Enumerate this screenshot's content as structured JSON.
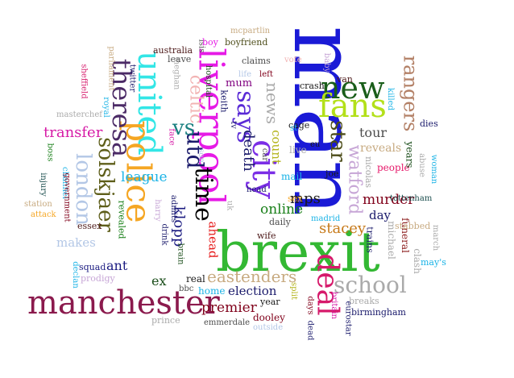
{
  "cloud": {
    "words": [
      {
        "text": "man",
        "color": "#1a1ad6",
        "rot": 90
      },
      {
        "text": "brexit",
        "color": "#33b833",
        "rot": 0
      },
      {
        "text": "liverpool",
        "color": "#e61ae6",
        "rot": 90
      },
      {
        "text": "united",
        "color": "#33e6e6",
        "rot": 90
      },
      {
        "text": "police",
        "color": "#f5a623",
        "rot": 90
      },
      {
        "text": "manchester",
        "color": "#8b1a4d",
        "rot": 0
      },
      {
        "text": "city",
        "color": "#7b2ee6",
        "rot": 90
      },
      {
        "text": "theresa",
        "color": "#4b2a66",
        "rot": 90
      },
      {
        "text": "new",
        "color": "#1a5e1a",
        "rot": 0
      },
      {
        "text": "fans",
        "color": "#b3e01a",
        "rot": 0
      },
      {
        "text": "says",
        "color": "#5a2ad6",
        "rot": 90
      },
      {
        "text": "deal",
        "color": "#d61a6b",
        "rot": 90
      },
      {
        "text": "rangers",
        "color": "#b38066",
        "rot": 90
      },
      {
        "text": "time",
        "color": "#000000",
        "rot": 90
      },
      {
        "text": "solskjaer",
        "color": "#5e5e1a",
        "rot": 90
      },
      {
        "text": "utd",
        "color": "#1a1a6b",
        "rot": 90
      },
      {
        "text": "star",
        "color": "#4d4d1a",
        "rot": 90
      },
      {
        "text": "london",
        "color": "#b3c7e6",
        "rot": 90
      },
      {
        "text": "school",
        "color": "#aaaaaa",
        "rot": 0
      },
      {
        "text": "watford",
        "color": "#c7a6d6",
        "rot": 90
      },
      {
        "text": "vs",
        "color": "#1a8080",
        "rot": 0
      },
      {
        "text": "celtic",
        "color": "#f2b3b3",
        "rot": 90
      },
      {
        "text": "news",
        "color": "#aaaaaa",
        "rot": 90
      },
      {
        "text": "death",
        "color": "#1a1a6b",
        "rot": 90
      },
      {
        "text": "eastenders",
        "color": "#c7aa80",
        "rot": 0
      },
      {
        "text": "transfer",
        "color": "#d61aa6",
        "rot": 0
      },
      {
        "text": "league",
        "color": "#1ab3e6",
        "rot": 0
      },
      {
        "text": "klopp",
        "color": "#1a1a80",
        "rot": 90
      },
      {
        "text": "stacey",
        "color": "#c77a1a",
        "rot": 0
      },
      {
        "text": "mps",
        "color": "#1a1a1a",
        "rot": 0
      },
      {
        "text": "murder",
        "color": "#80001a",
        "rot": 0
      },
      {
        "text": "premier",
        "color": "#80001a",
        "rot": 0
      },
      {
        "text": "online",
        "color": "#1a801a",
        "rot": 0
      },
      {
        "text": "election",
        "color": "#1a1a6b",
        "rot": 0
      },
      {
        "text": "tour",
        "color": "#4d4d4d",
        "rot": 0
      },
      {
        "text": "reveals",
        "color": "#c7aa80",
        "rot": 0
      },
      {
        "text": "day",
        "color": "#1a1a6b",
        "rot": 0
      },
      {
        "text": "ahead",
        "color": "#e61a1a",
        "rot": 90
      },
      {
        "text": "makes",
        "color": "#b3c7e6",
        "rot": 0
      },
      {
        "text": "ant",
        "color": "#1a1a80",
        "rot": 0
      },
      {
        "text": "ex",
        "color": "#1a4d1a",
        "rot": 0
      },
      {
        "text": "count",
        "color": "#b3b31a",
        "rot": 90
      },
      {
        "text": "mum",
        "color": "#800080",
        "rot": 0
      },
      {
        "text": "home",
        "color": "#1ab3e6",
        "rot": 0
      },
      {
        "text": "people",
        "color": "#e61a6b",
        "rot": 0
      },
      {
        "text": "funeral",
        "color": "#8b1a1a",
        "rot": 90
      },
      {
        "text": "clash",
        "color": "#aaaaaa",
        "rot": 90
      },
      {
        "text": "michael",
        "color": "#aaaaaa",
        "rot": 90
      },
      {
        "text": "trains",
        "color": "#1a1a6b",
        "rot": 90
      },
      {
        "text": "real",
        "color": "#1a1a1a",
        "rot": 0
      },
      {
        "text": "dooley",
        "color": "#80001a",
        "rot": 0
      },
      {
        "text": "mail",
        "color": "#1ab3e6",
        "rot": 0
      },
      {
        "text": "live",
        "color": "#aaaaaa",
        "rot": 0
      },
      {
        "text": "revealed",
        "color": "#1a801a",
        "rot": 90
      },
      {
        "text": "years",
        "color": "#1a4d1a",
        "rot": 90
      },
      {
        "text": "tottenham",
        "color": "#1a4d4d",
        "rot": 0
      },
      {
        "text": "nicolas",
        "color": "#aaaaaa",
        "rot": 90
      },
      {
        "text": "birmingham",
        "color": "#1a1a6b",
        "rot": 0
      },
      {
        "text": "stabbed",
        "color": "#c7aa80",
        "rot": 0
      },
      {
        "text": "may's",
        "color": "#1ab3e6",
        "rot": 0
      },
      {
        "text": "keith",
        "color": "#1a1a6b",
        "rot": 90
      },
      {
        "text": "claims",
        "color": "#4d4d4d",
        "rot": 0
      },
      {
        "text": "boyfriend",
        "color": "#4d4d1a",
        "rot": 0
      },
      {
        "text": "van",
        "color": "#4d1a1a",
        "rot": 0
      },
      {
        "text": "crash",
        "color": "#1a1a1a",
        "rot": 0
      },
      {
        "text": "cage",
        "color": "#1a1a1a",
        "rot": 0
      },
      {
        "text": "dies",
        "color": "#1a1a6b",
        "rot": 0
      },
      {
        "text": "killed",
        "color": "#1ab3e6",
        "rot": 90
      },
      {
        "text": "joe",
        "color": "#1a1a1a",
        "rot": 0
      },
      {
        "text": "daily",
        "color": "#4d4d4d",
        "rot": 0
      },
      {
        "text": "wife",
        "color": "#4d1a1a",
        "rot": 0
      },
      {
        "text": "sex",
        "color": "#f5a623",
        "rot": 0
      },
      {
        "text": "madrid",
        "color": "#1ab3e6",
        "rot": 0
      },
      {
        "text": "year",
        "color": "#1a1a1a",
        "rot": 0
      },
      {
        "text": "split",
        "color": "#b3b31a",
        "rot": 90
      },
      {
        "text": "days",
        "color": "#80001a",
        "rot": 90
      },
      {
        "text": "britain",
        "color": "#d61aa6",
        "rot": 90
      },
      {
        "text": "breaks",
        "color": "#aaaaaa",
        "rot": 0
      },
      {
        "text": "eurostar",
        "color": "#1a1a6b",
        "rot": 90
      },
      {
        "text": "emmerdale",
        "color": "#4d4d4d",
        "rot": 0
      },
      {
        "text": "outside",
        "color": "#b3c7e6",
        "rot": 0
      },
      {
        "text": "dead",
        "color": "#1a1a6b",
        "rot": 90
      },
      {
        "text": "prince",
        "color": "#aaaaaa",
        "rot": 0
      },
      {
        "text": "bbc",
        "color": "#4d4d4d",
        "rot": 0
      },
      {
        "text": "brain",
        "color": "#1a4d1a",
        "rot": 90
      },
      {
        "text": "drink",
        "color": "#1a1a6b",
        "rot": 90
      },
      {
        "text": "admits",
        "color": "#1a1a6b",
        "rot": 90
      },
      {
        "text": "harry",
        "color": "#c7a6d6",
        "rot": 90
      },
      {
        "text": "squad",
        "color": "#1a1a80",
        "rot": 0
      },
      {
        "text": "prodigy",
        "color": "#c7a6d6",
        "rot": 0
      },
      {
        "text": "declan",
        "color": "#1ab3e6",
        "rot": 90
      },
      {
        "text": "channel",
        "color": "#1ab3e6",
        "rot": 90
      },
      {
        "text": "government",
        "color": "#80001a",
        "rot": 90
      },
      {
        "text": "injury",
        "color": "#1a4d4d",
        "rot": 90
      },
      {
        "text": "station",
        "color": "#c7aa80",
        "rot": 0
      },
      {
        "text": "attack",
        "color": "#f5a623",
        "rot": 0
      },
      {
        "text": "essex",
        "color": "#4d1a1a",
        "rot": 0
      },
      {
        "text": "boss",
        "color": "#1a801a",
        "rot": 90
      },
      {
        "text": "masterchef",
        "color": "#aaaaaa",
        "rot": 0
      },
      {
        "text": "sheffield",
        "color": "#d61a6b",
        "rot": 90
      },
      {
        "text": "parliament",
        "color": "#c7aa80",
        "rot": 90
      },
      {
        "text": "royal",
        "color": "#1ab3e6",
        "rot": 90
      },
      {
        "text": "twitter",
        "color": "#1a1a6b",
        "rot": 90
      },
      {
        "text": "australia",
        "color": "#4d1a1a",
        "rot": 0
      },
      {
        "text": "leave",
        "color": "#4d4d4d",
        "rot": 0
      },
      {
        "text": "meghan",
        "color": "#aaaaaa",
        "rot": 90
      },
      {
        "text": "isis",
        "color": "#4d4d4d",
        "rot": 90
      },
      {
        "text": "boy",
        "color": "#e61ae6",
        "rot": 0
      },
      {
        "text": "mcpartlin",
        "color": "#c7aa80",
        "rot": 0
      },
      {
        "text": "hospital",
        "color": "#1a4d1a",
        "rot": 90
      },
      {
        "text": "face",
        "color": "#d61aa6",
        "rot": 90
      },
      {
        "text": "son",
        "color": "#b3c7e6",
        "rot": 90
      },
      {
        "text": "life",
        "color": "#b3c7e6",
        "rot": 0
      },
      {
        "text": "left",
        "color": "#80001a",
        "rot": 0
      },
      {
        "text": "vote",
        "color": "#f2b3b3",
        "rot": 0
      },
      {
        "text": "baby",
        "color": "#c7a6d6",
        "rot": 90
      },
      {
        "text": "head",
        "color": "#1a1a6b",
        "rot": 0
      },
      {
        "text": "car",
        "color": "#4d4d4d",
        "rot": 90
      },
      {
        "text": "eu",
        "color": "#1a1a1a",
        "rot": 0
      },
      {
        "text": "st",
        "color": "#1ab3e6",
        "rot": 0
      },
      {
        "text": "tv",
        "color": "#1a1a6b",
        "rot": 90
      },
      {
        "text": "uk",
        "color": "#aaaaaa",
        "rot": 90
      },
      {
        "text": "abuse",
        "color": "#aaaaaa",
        "rot": 90
      },
      {
        "text": "woman",
        "color": "#1ab3e6",
        "rot": 90
      },
      {
        "text": "march",
        "color": "#aaaaaa",
        "rot": 90
      }
    ]
  }
}
